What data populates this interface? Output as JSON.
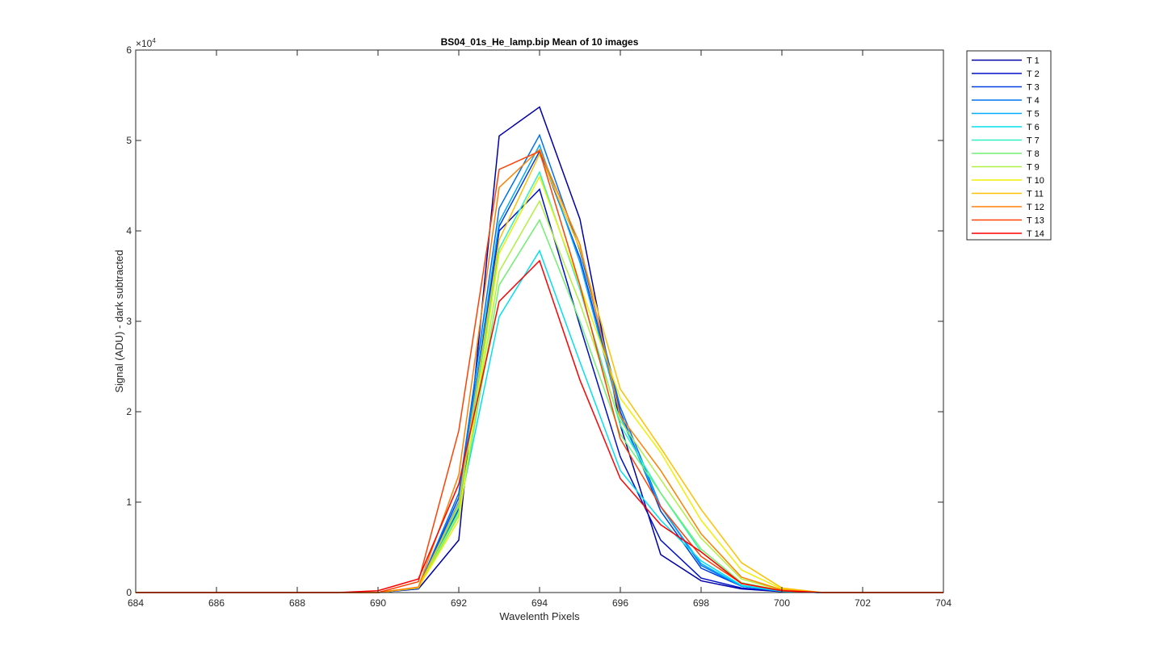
{
  "chart_data": {
    "type": "line",
    "title": "BS04_01s_He_lamp.bip  Mean of 10 images",
    "xlabel": "Wavelenth Pixels",
    "ylabel": "Signal (ADU) - dark subtracted",
    "y_exponent_label": "×10",
    "y_exponent_power": "4",
    "xlim": [
      684,
      704
    ],
    "ylim": [
      0,
      60000
    ],
    "xticks": [
      "684",
      "686",
      "688",
      "690",
      "692",
      "694",
      "696",
      "698",
      "700",
      "702",
      "704"
    ],
    "yticks": [
      "0",
      "1",
      "2",
      "3",
      "4",
      "5",
      "6"
    ],
    "grid": false,
    "legend_location": "outside-top-right",
    "x": [
      684,
      685,
      686,
      687,
      688,
      689,
      690,
      691,
      692,
      693,
      694,
      695,
      696,
      697,
      698,
      699,
      700,
      701,
      702,
      703,
      704
    ],
    "series": [
      {
        "name": "T 1",
        "color": "#0000aa",
        "values": [
          0,
          0,
          0,
          0,
          0,
          0,
          0,
          400,
          5800,
          50500,
          53700,
          41300,
          18500,
          4200,
          1300,
          400,
          100,
          0,
          0,
          0,
          0
        ]
      },
      {
        "name": "T 2",
        "color": "#0010c8",
        "values": [
          0,
          0,
          0,
          0,
          0,
          0,
          0,
          450,
          9300,
          40000,
          44600,
          29500,
          15000,
          5800,
          1600,
          500,
          120,
          0,
          0,
          0,
          0
        ]
      },
      {
        "name": "T 3",
        "color": "#0040e0",
        "values": [
          0,
          0,
          0,
          0,
          0,
          0,
          0,
          500,
          10500,
          40500,
          48800,
          37000,
          20000,
          9000,
          2700,
          700,
          150,
          0,
          0,
          0,
          0
        ]
      },
      {
        "name": "T 4",
        "color": "#0070f0",
        "values": [
          0,
          0,
          0,
          0,
          0,
          0,
          0,
          550,
          11000,
          42500,
          50600,
          37800,
          20500,
          9500,
          3000,
          700,
          150,
          0,
          0,
          0,
          0
        ]
      },
      {
        "name": "T 5",
        "color": "#00aaff",
        "values": [
          0,
          0,
          0,
          0,
          0,
          0,
          0,
          500,
          10000,
          41000,
          49500,
          36500,
          19500,
          9500,
          3200,
          700,
          150,
          0,
          0,
          0,
          0
        ]
      },
      {
        "name": "T 6",
        "color": "#00e0f0",
        "values": [
          0,
          0,
          0,
          0,
          0,
          0,
          0,
          500,
          9000,
          30500,
          37800,
          25500,
          13500,
          8000,
          3500,
          800,
          150,
          0,
          0,
          0,
          0
        ]
      },
      {
        "name": "T 7",
        "color": "#30f0c0",
        "values": [
          0,
          0,
          0,
          0,
          0,
          0,
          0,
          550,
          9500,
          38000,
          46500,
          33500,
          18500,
          11000,
          4500,
          1000,
          200,
          0,
          0,
          0,
          0
        ]
      },
      {
        "name": "T 8",
        "color": "#70f070",
        "values": [
          0,
          0,
          0,
          0,
          0,
          0,
          0,
          500,
          8500,
          34000,
          41200,
          30000,
          17500,
          11000,
          4800,
          1100,
          200,
          0,
          0,
          0,
          0
        ]
      },
      {
        "name": "T 9",
        "color": "#b0f040",
        "values": [
          0,
          0,
          0,
          0,
          0,
          0,
          0,
          550,
          8800,
          35500,
          43300,
          32000,
          19000,
          12500,
          6000,
          1500,
          250,
          0,
          0,
          0,
          0
        ]
      },
      {
        "name": "T 10",
        "color": "#f0f000",
        "values": [
          0,
          0,
          0,
          0,
          0,
          0,
          0,
          550,
          8000,
          37500,
          46000,
          34000,
          21500,
          15500,
          8000,
          2500,
          400,
          0,
          0,
          0,
          0
        ]
      },
      {
        "name": "T 11",
        "color": "#ffc000",
        "values": [
          0,
          0,
          0,
          0,
          0,
          0,
          0,
          550,
          9800,
          39000,
          48500,
          38000,
          22500,
          16000,
          9200,
          3300,
          500,
          0,
          0,
          0,
          0
        ]
      },
      {
        "name": "T 12",
        "color": "#ff8000",
        "values": [
          0,
          0,
          0,
          0,
          0,
          0,
          0,
          600,
          13000,
          44800,
          49000,
          38500,
          19500,
          13500,
          6500,
          1700,
          300,
          0,
          0,
          0,
          0
        ]
      },
      {
        "name": "T 13",
        "color": "#ff4000",
        "values": [
          0,
          0,
          0,
          0,
          0,
          0,
          0,
          1200,
          17900,
          46800,
          48800,
          34000,
          17000,
          9500,
          4000,
          1000,
          200,
          0,
          0,
          0,
          0
        ]
      },
      {
        "name": "T 14",
        "color": "#ff0000",
        "values": [
          0,
          0,
          0,
          0,
          0,
          0,
          200,
          1500,
          12000,
          32200,
          36700,
          23500,
          12600,
          7500,
          4500,
          1000,
          200,
          0,
          0,
          0,
          0
        ]
      }
    ]
  }
}
